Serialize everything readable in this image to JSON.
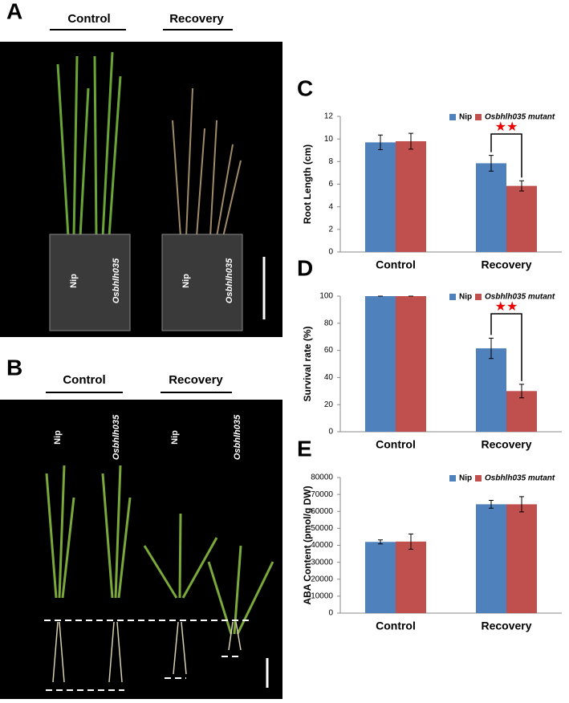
{
  "panels": [
    {
      "label": "A",
      "groups": [
        "Control",
        "Recovery"
      ],
      "plant_labels": [
        "Nip",
        "Osbhlh035",
        "Nip",
        "Osbhlh035"
      ]
    },
    {
      "label": "B",
      "groups": [
        "Control",
        "Recovery"
      ],
      "plant_labels": [
        "Nip",
        "Osbhlh035",
        "Nip",
        "Osbhlh035"
      ]
    }
  ],
  "chart_data": [
    {
      "type": "bar",
      "label": "C",
      "y_label": "Root Length (cm)",
      "categories": [
        "Control",
        "Recovery"
      ],
      "series": [
        {
          "name": "Nip",
          "color": "#4f81bd",
          "values": [
            9.7,
            7.85
          ],
          "errors": [
            0.65,
            0.7
          ]
        },
        {
          "name": "Osbhlh035 mutant",
          "color": "#c0504d",
          "values": [
            9.8,
            5.85
          ],
          "errors": [
            0.7,
            0.45
          ]
        }
      ],
      "ylim": [
        0,
        12
      ],
      "yticks": [
        0,
        2,
        4,
        6,
        8,
        10,
        12
      ],
      "annotation": "★★",
      "legend": "top-right"
    },
    {
      "type": "bar",
      "label": "D",
      "y_label": "Survival rate (%)",
      "categories": [
        "Control",
        "Recovery"
      ],
      "series": [
        {
          "name": "Nip",
          "color": "#4f81bd",
          "values": [
            100,
            61.5
          ],
          "errors": [
            0,
            7.5
          ]
        },
        {
          "name": "Osbhlh035 mutant",
          "color": "#c0504d",
          "values": [
            100,
            30
          ],
          "errors": [
            0,
            5
          ]
        }
      ],
      "ylim": [
        0,
        100
      ],
      "yticks": [
        0,
        20,
        40,
        60,
        80,
        100
      ],
      "annotation": "★★",
      "legend": "top-right"
    },
    {
      "type": "bar",
      "label": "E",
      "y_label": "ABA Content (pmol/g DW)",
      "categories": [
        "Control",
        "Recovery"
      ],
      "series": [
        {
          "name": "Nip",
          "color": "#4f81bd",
          "values": [
            42000,
            64200
          ],
          "errors": [
            1200,
            2300
          ]
        },
        {
          "name": "Osbhlh035 mutant",
          "color": "#c0504d",
          "values": [
            42200,
            64200
          ],
          "errors": [
            4500,
            4500
          ]
        }
      ],
      "ylim": [
        0,
        80000
      ],
      "yticks": [
        0,
        10000,
        20000,
        30000,
        40000,
        50000,
        60000,
        70000,
        80000
      ],
      "legend": "top-right"
    }
  ]
}
